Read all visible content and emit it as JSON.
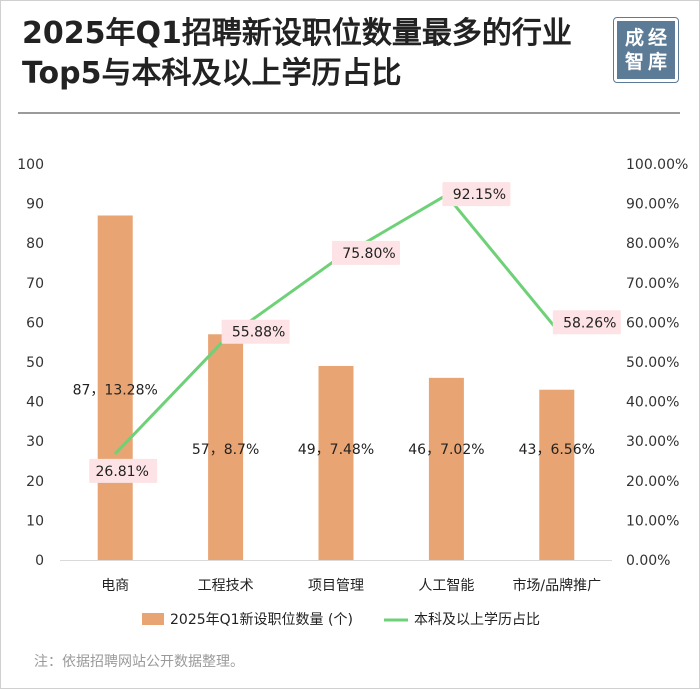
{
  "title": "2025年Q1招聘新设职位数量最多的行业Top5与本科及以上学历占比",
  "seal": {
    "chars": [
      "成",
      "经",
      "智",
      "库"
    ],
    "color": "#5b7b96"
  },
  "footnote": "注：依据招聘网站公开数据整理。",
  "chart_data": {
    "type": "bar",
    "categories": [
      "电商",
      "工程技术",
      "项目管理",
      "人工智能",
      "市场/品牌推广"
    ],
    "series": [
      {
        "name": "2025年Q1新设职位数量 (个)",
        "type": "bar",
        "axis": "left",
        "values": [
          87,
          57,
          49,
          46,
          43
        ],
        "color": "#e8a472",
        "labels": [
          "87，13.28%",
          "57，8.7%",
          "49，7.48%",
          "46，7.02%",
          "43，6.56%"
        ]
      },
      {
        "name": "本科及以上学历占比",
        "type": "line",
        "axis": "right",
        "values": [
          26.81,
          55.88,
          75.8,
          92.15,
          58.26
        ],
        "color": "#6fd177",
        "labels": [
          "26.81%",
          "55.88%",
          "75.80%",
          "92.15%",
          "58.26%"
        ]
      }
    ],
    "y_left": {
      "min": 0,
      "max": 100,
      "ticks": [
        "0",
        "10",
        "20",
        "30",
        "40",
        "50",
        "60",
        "70",
        "80",
        "90",
        "100"
      ]
    },
    "y_right": {
      "min": 0,
      "max": 100,
      "ticks": [
        "0.00%",
        "10.00%",
        "20.00%",
        "30.00%",
        "40.00%",
        "50.00%",
        "60.00%",
        "70.00%",
        "80.00%",
        "90.00%",
        "100.00%"
      ]
    },
    "line_label_bg": "#fde3e5",
    "grid": false,
    "legend_position": "bottom"
  }
}
